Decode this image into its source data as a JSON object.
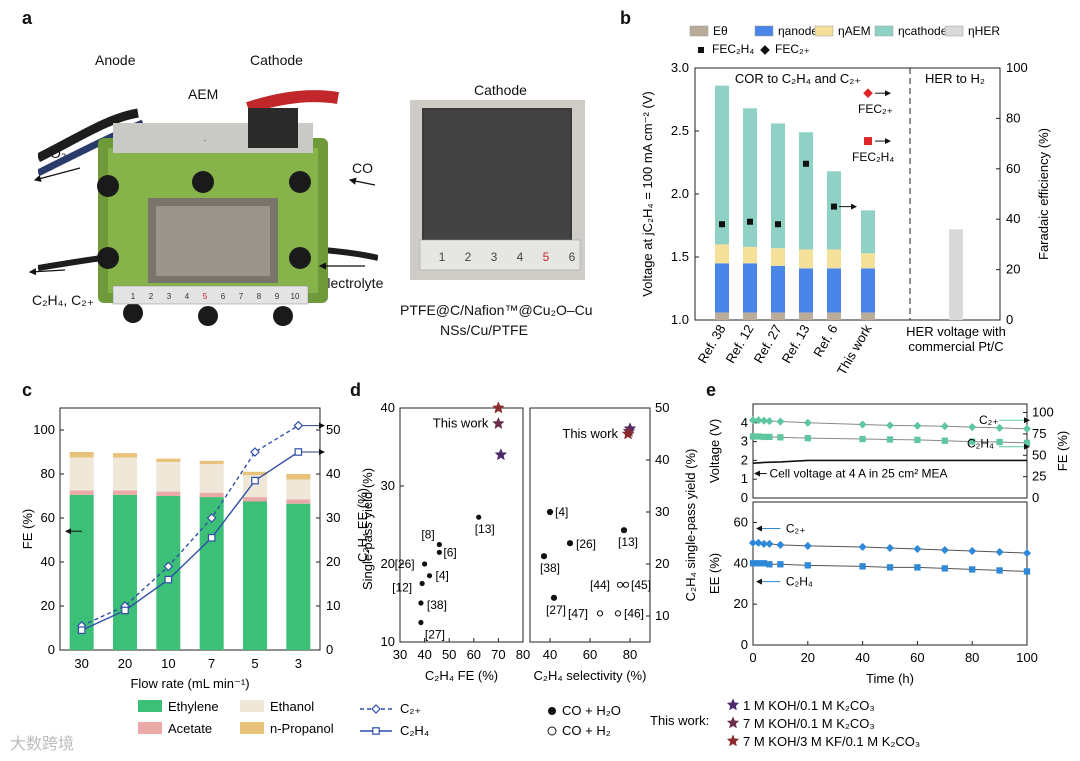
{
  "panel_a": {
    "letter": "a",
    "labels": {
      "anode": "Anode",
      "cathode": "Cathode",
      "aem": "AEM",
      "o2": "O₂",
      "co": "CO",
      "electrolyte": "Electrolyte",
      "c2": "C₂H₄, C₂₊",
      "cathode_photo_title": "Cathode",
      "caption_line1": "PTFE@C/Nafion™@Cu₂O–Cu",
      "caption_line2": "NSs/Cu/PTFE"
    },
    "ruler_marks": [
      "1",
      "2",
      "3",
      "4",
      "5",
      "6",
      "7",
      "8",
      "9",
      "10"
    ],
    "ruler2_marks": [
      "1",
      "2",
      "3",
      "4",
      "5",
      "6"
    ]
  },
  "chart_data": [
    {
      "panel": "b",
      "type": "bar",
      "stacked": true,
      "legend": [
        "Eθ",
        "ηanode",
        "ηAEM",
        "ηcathode",
        "ηHER",
        "FEC₂H₄",
        "FEC₂₊"
      ],
      "colors": {
        "E0": "#b9ab9a",
        "anode": "#4a86e8",
        "aem": "#f5e09a",
        "cathode": "#8fd1c4",
        "her": "#d9d9d9"
      },
      "categories": [
        "Ref. 38",
        "Ref. 12",
        "Ref. 27",
        "Ref. 13",
        "Ref. 6",
        "This work",
        "HER voltage with commercial Pt/C"
      ],
      "series": [
        {
          "name": "Eθ",
          "values": [
            0.06,
            0.06,
            0.06,
            0.06,
            0.06,
            0.06,
            0
          ]
        },
        {
          "name": "ηanode",
          "values": [
            0.39,
            0.39,
            0.37,
            0.35,
            0.35,
            0.35,
            0
          ]
        },
        {
          "name": "ηAEM",
          "values": [
            0.15,
            0.13,
            0.14,
            0.15,
            0.15,
            0.12,
            0
          ]
        },
        {
          "name": "ηcathode",
          "values": [
            1.26,
            1.1,
            0.99,
            0.93,
            0.62,
            0.34,
            0
          ]
        },
        {
          "name": "ηHER",
          "values": [
            0,
            0,
            0,
            0,
            0,
            0,
            0.72
          ]
        }
      ],
      "fe_c2h4": [
        38,
        39,
        38,
        62,
        45,
        null,
        null
      ],
      "fe_c2plus": [
        null,
        null,
        null,
        null,
        null,
        null,
        null
      ],
      "ylabel": "Voltage at jC₂H₄ = 100 mA cm⁻² (V)",
      "y2label": "Faradaic efficiency (%)",
      "ylim": [
        1.0,
        3.0
      ],
      "y2lim": [
        0,
        100
      ],
      "yticks": [
        "1.0",
        "1.5",
        "2.0",
        "2.5",
        "3.0"
      ],
      "y2ticks": [
        "0",
        "20",
        "40",
        "60",
        "80",
        "100"
      ],
      "region_labels": [
        "COR to C₂H₄ and C₂₊",
        "HER to H₂"
      ],
      "annotations": [
        "FEC₂₊",
        "FEC₂H₄"
      ]
    },
    {
      "panel": "c",
      "type": "bar",
      "stacked": true,
      "categories": [
        "30",
        "20",
        "10",
        "7",
        "5",
        "3"
      ],
      "series": [
        {
          "name": "Ethylene",
          "color": "#3cbf76",
          "values": [
            70.5,
            70.5,
            70,
            69.5,
            67.5,
            66.5
          ]
        },
        {
          "name": "Acetate",
          "color": "#e9aaa8",
          "values": [
            2,
            2,
            2,
            2,
            2,
            2
          ]
        },
        {
          "name": "Ethanol",
          "color": "#efe7d8",
          "values": [
            15,
            15,
            13.5,
            13,
            10,
            9
          ]
        },
        {
          "name": "n-Propanol",
          "color": "#e8c27a",
          "values": [
            2.5,
            2,
            1.5,
            1.5,
            1.5,
            2.5
          ]
        }
      ],
      "lines": [
        {
          "name": "C₂₊",
          "style": "dashed",
          "marker": "diamond",
          "values": [
            5.5,
            10,
            19,
            30,
            45,
            51
          ]
        },
        {
          "name": "C₂H₄",
          "style": "solid",
          "marker": "square",
          "values": [
            4.5,
            9,
            16,
            25.5,
            38.5,
            45
          ]
        }
      ],
      "xlabel": "Flow rate (mL min⁻¹)",
      "ylabel": "FE (%)",
      "y2label": "Single-pass yield (%)",
      "ylim": [
        0,
        110
      ],
      "y2lim": [
        0,
        55
      ],
      "yticks": [
        "0",
        "20",
        "40",
        "60",
        "80",
        "100"
      ],
      "y2ticks": [
        "0",
        "10",
        "20",
        "30",
        "40",
        "50"
      ]
    },
    {
      "panel": "d-left",
      "type": "scatter",
      "xlabel": "C₂H₄ FE (%)",
      "ylabel": "C₂H₄ EE (%)",
      "xlim": [
        30,
        80
      ],
      "ylim": [
        10,
        40
      ],
      "xticks": [
        "30",
        "40",
        "50",
        "60",
        "70",
        "80"
      ],
      "yticks": [
        "10",
        "20",
        "30",
        "40"
      ],
      "points": [
        {
          "label": "[8]",
          "x": 46,
          "y": 22.5
        },
        {
          "label": "[6]",
          "x": 46,
          "y": 21.5
        },
        {
          "label": "[26]",
          "x": 40,
          "y": 20
        },
        {
          "label": "[4]",
          "x": 42,
          "y": 18.5
        },
        {
          "label": "[12]",
          "x": 39,
          "y": 17.5
        },
        {
          "label": "[38]",
          "x": 38.5,
          "y": 15
        },
        {
          "label": "[27]",
          "x": 38.5,
          "y": 12.5
        },
        {
          "label": "[13]",
          "x": 62,
          "y": 26
        }
      ],
      "this_work": [
        {
          "x": 70,
          "y": 40,
          "color": "#8b2a2a"
        },
        {
          "x": 70,
          "y": 38,
          "color": "#6b2f50"
        },
        {
          "x": 71,
          "y": 34,
          "color": "#4b2a6b"
        }
      ],
      "this_work_label": "This work"
    },
    {
      "panel": "d-right",
      "type": "scatter",
      "xlabel": "C₂H₄ selectivity (%)",
      "y2label": "C₂H₄ single-pass yield (%)",
      "xlim": [
        30,
        90
      ],
      "ylim": [
        5,
        50
      ],
      "xticks": [
        "40",
        "60",
        "80"
      ],
      "y2ticks": [
        "10",
        "20",
        "30",
        "40",
        "50"
      ],
      "points": [
        {
          "label": "[4]",
          "x": 40,
          "y": 30,
          "filled": true
        },
        {
          "label": "[26]",
          "x": 50,
          "y": 24,
          "filled": true
        },
        {
          "label": "[38]",
          "x": 37,
          "y": 21.5,
          "filled": true
        },
        {
          "label": "[13]",
          "x": 77,
          "y": 26.5,
          "filled": true
        },
        {
          "label": "[27]",
          "x": 42,
          "y": 13.5,
          "filled": true
        },
        {
          "label": "[44]",
          "x": 75,
          "y": 16,
          "filled": false
        },
        {
          "label": "[45]",
          "x": 78,
          "y": 16,
          "filled": false
        },
        {
          "label": "[47]",
          "x": 65,
          "y": 10.5,
          "filled": false
        },
        {
          "label": "[46]",
          "x": 74,
          "y": 10.5,
          "filled": false
        }
      ],
      "this_work": [
        {
          "x": 80,
          "y": 46,
          "color": "#4b2a6b"
        },
        {
          "x": 79.5,
          "y": 45.5,
          "color": "#6b2f50"
        },
        {
          "x": 79,
          "y": 45,
          "color": "#8b2a2a"
        }
      ],
      "this_work_label": "This work"
    },
    {
      "panel": "e",
      "type": "line",
      "xlabel": "Time (h)",
      "xlim": [
        0,
        100
      ],
      "xticks": [
        "0",
        "20",
        "40",
        "60",
        "80",
        "100"
      ],
      "top": {
        "ylabel": "Voltage (V)",
        "y2label": "FE (%)",
        "yticks": [
          "0",
          "1",
          "2",
          "3",
          "4"
        ],
        "y2ticks": [
          "0",
          "25",
          "50",
          "75",
          "100"
        ],
        "cell_voltage_label": "Cell voltage at 4 A in 25 cm² MEA",
        "series": [
          {
            "name": "C₂₊",
            "color": "#5fc7a0",
            "x": [
              0,
              2,
              4,
              6,
              10,
              20,
              40,
              50,
              60,
              70,
              80,
              90,
              100
            ],
            "y": [
              91,
              91,
              90.5,
              90,
              89.5,
              88,
              86,
              85,
              84.5,
              84,
              83,
              82,
              81
            ]
          },
          {
            "name": "C₂H₄",
            "color": "#5fc7a0",
            "x": [
              0,
              2,
              4,
              6,
              10,
              20,
              40,
              50,
              60,
              70,
              80,
              90,
              100
            ],
            "y": [
              72,
              72,
              71.5,
              71.5,
              71,
              70,
              69,
              68.5,
              68,
              67,
              66,
              65.5,
              64.5
            ]
          }
        ],
        "cell_voltage": {
          "x": [
            0,
            5,
            10,
            20,
            30,
            40,
            50,
            60,
            70,
            80,
            90,
            100
          ],
          "y": [
            1.85,
            1.9,
            1.92,
            2.0,
            2.0,
            2.0,
            2.0,
            2.0,
            2.0,
            2.0,
            2.0,
            2.0
          ]
        }
      },
      "bottom": {
        "ylabel": "EE (%)",
        "ylim": [
          0,
          70
        ],
        "yticks": [
          "0",
          "20",
          "40",
          "60"
        ],
        "series": [
          {
            "name": "C₂₊",
            "color": "#2f88d8",
            "x": [
              0,
              2,
              4,
              6,
              10,
              20,
              40,
              50,
              60,
              70,
              80,
              90,
              100
            ],
            "y": [
              50,
              50,
              49.5,
              49.5,
              49,
              48.5,
              48,
              47.5,
              47,
              46.5,
              46,
              45.5,
              45
            ]
          },
          {
            "name": "C₂H₄",
            "color": "#2f88d8",
            "x": [
              0,
              2,
              4,
              6,
              10,
              20,
              40,
              50,
              60,
              70,
              80,
              90,
              100
            ],
            "y": [
              40,
              40,
              40,
              39.5,
              39.5,
              39,
              38.5,
              38,
              38,
              37.5,
              37,
              36.5,
              36
            ]
          }
        ]
      }
    }
  ],
  "legend_bottom": {
    "c_items": [
      "Ethylene",
      "Ethanol",
      "Acetate",
      "n-Propanol"
    ],
    "c_lines": [
      "C₂₊",
      "C₂H₄"
    ],
    "d_markers": [
      "CO + H₂O",
      "CO + H₂"
    ],
    "this_work_prefix": "This work:",
    "this_work_items": [
      "1 M KOH/0.1 M K₂CO₃",
      "7 M KOH/0.1 M K₂CO₃",
      "7 M KOH/3 M KF/0.1 M K₂CO₃"
    ],
    "this_work_colors": [
      "#4b2a6b",
      "#6b2f50",
      "#8b2a2a"
    ]
  },
  "watermark": "大数跨境"
}
